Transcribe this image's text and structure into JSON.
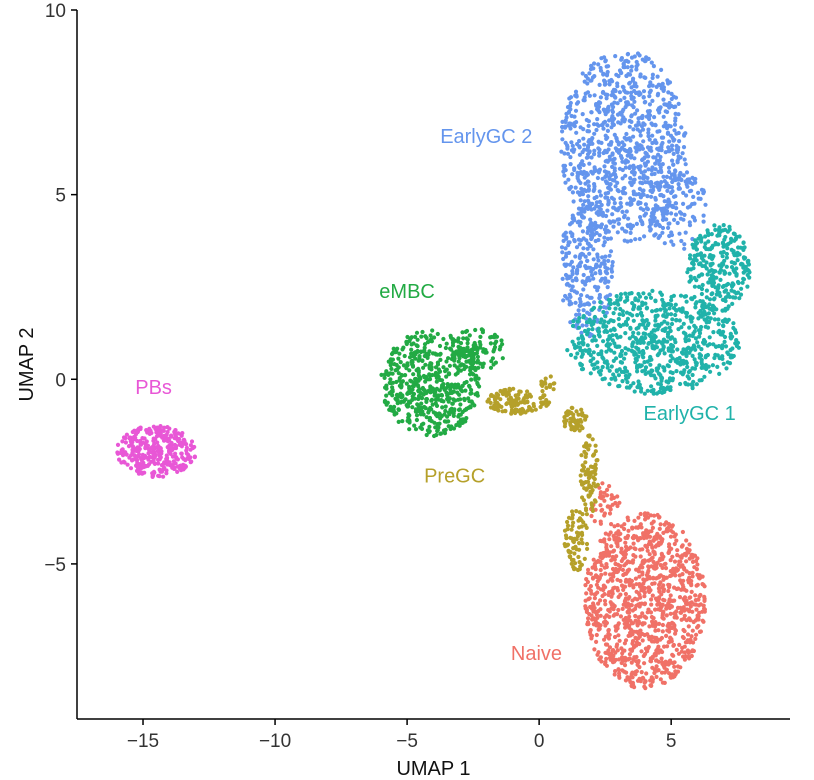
{
  "chart_data": {
    "type": "scatter",
    "title": "",
    "xlabel": "UMAP 1",
    "ylabel": "UMAP 2",
    "xlim": [
      -17.5,
      9.5
    ],
    "ylim": [
      -9.2,
      10
    ],
    "xticks": [
      -15,
      -10,
      -5,
      0,
      5
    ],
    "yticks": [
      -5,
      0,
      5,
      10
    ],
    "xtick_labels": [
      "−15",
      "−10",
      "−5",
      "0",
      "5"
    ],
    "ytick_labels": [
      "−5",
      "0",
      "5",
      "10"
    ],
    "grid": false,
    "legend": "none",
    "clusters": [
      {
        "name": "EarlyGC 2",
        "label": "EarlyGC 2",
        "color": "#6495ED",
        "label_at": [
          -2.0,
          6.4
        ],
        "label_anchor": "middle",
        "blobs": [
          {
            "cx": 3.2,
            "cy": 6.3,
            "rx": 2.4,
            "ry": 2.6,
            "n": 900
          },
          {
            "cx": 1.8,
            "cy": 3.0,
            "rx": 1.0,
            "ry": 1.9,
            "n": 260
          },
          {
            "cx": 5.2,
            "cy": 4.6,
            "rx": 1.2,
            "ry": 1.1,
            "n": 120
          }
        ]
      },
      {
        "name": "EarlyGC 1",
        "label": "EarlyGC 1",
        "color": "#20B2AA",
        "label_at": [
          5.7,
          -1.1
        ],
        "label_anchor": "middle",
        "blobs": [
          {
            "cx": 4.3,
            "cy": 1.0,
            "rx": 3.3,
            "ry": 1.4,
            "n": 720
          },
          {
            "cx": 6.8,
            "cy": 3.0,
            "rx": 1.2,
            "ry": 1.2,
            "n": 260
          }
        ]
      },
      {
        "name": "Naive",
        "label": "Naive",
        "color": "#F07167",
        "label_at": [
          -0.1,
          -7.6
        ],
        "label_anchor": "middle",
        "blobs": [
          {
            "cx": 4.0,
            "cy": -6.0,
            "rx": 2.3,
            "ry": 2.4,
            "n": 1050
          },
          {
            "cx": 2.5,
            "cy": -3.4,
            "rx": 0.6,
            "ry": 0.6,
            "n": 40
          }
        ]
      },
      {
        "name": "eMBC",
        "label": "eMBC",
        "color": "#22AA44",
        "label_at": [
          -5.0,
          2.2
        ],
        "label_anchor": "middle",
        "blobs": [
          {
            "cx": -4.1,
            "cy": -0.1,
            "rx": 1.9,
            "ry": 1.45,
            "n": 560
          },
          {
            "cx": -2.3,
            "cy": 0.8,
            "rx": 1.0,
            "ry": 0.6,
            "n": 90
          }
        ]
      },
      {
        "name": "PreGC",
        "label": "PreGC",
        "color": "#B5A02A",
        "label_at": [
          -3.2,
          -2.8
        ],
        "label_anchor": "middle",
        "blobs": [
          {
            "cx": -0.9,
            "cy": -0.6,
            "rx": 1.1,
            "ry": 0.35,
            "n": 120
          },
          {
            "cx": 1.4,
            "cy": -1.1,
            "rx": 0.5,
            "ry": 0.35,
            "n": 50
          },
          {
            "cx": 1.9,
            "cy": -2.6,
            "rx": 0.35,
            "ry": 1.1,
            "n": 80
          },
          {
            "cx": 1.4,
            "cy": -4.3,
            "rx": 0.45,
            "ry": 0.9,
            "n": 70
          },
          {
            "cx": 0.3,
            "cy": -0.3,
            "rx": 0.3,
            "ry": 0.5,
            "n": 25
          }
        ]
      },
      {
        "name": "PBs",
        "label": "PBs",
        "color": "#E857D6",
        "label_at": [
          -14.6,
          -0.4
        ],
        "label_anchor": "middle",
        "blobs": [
          {
            "cx": -14.5,
            "cy": -1.95,
            "rx": 1.5,
            "ry": 0.7,
            "n": 330
          }
        ]
      }
    ]
  }
}
